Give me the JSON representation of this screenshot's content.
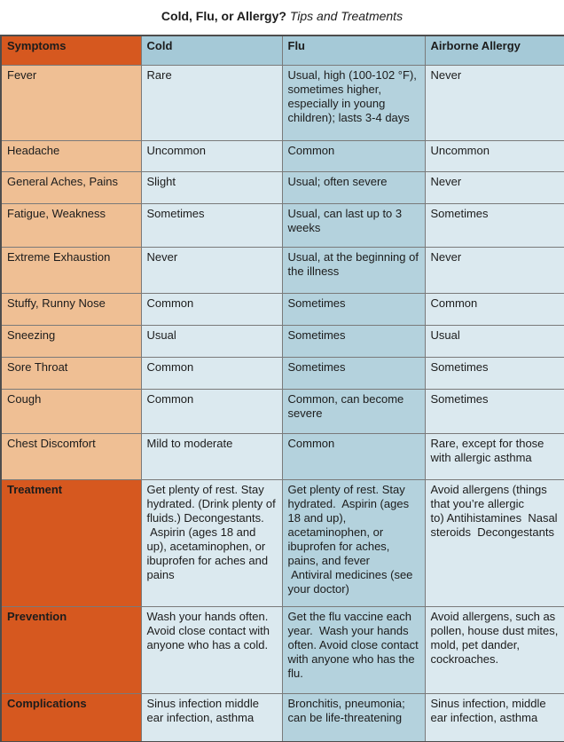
{
  "title": {
    "main": "Cold, Flu, or Allergy?",
    "subtitle": " Tips and Treatments"
  },
  "table": {
    "headers": [
      "Symptoms",
      "Cold",
      "Flu",
      "Airborne Allergy"
    ],
    "rows": [
      {
        "kind": "symptom",
        "label": "Fever",
        "cold": "Rare",
        "flu": "Usual, high (100-102 °F), sometimes higher, especially in young children); lasts 3-4 days",
        "allergy": "Never"
      },
      {
        "kind": "symptom",
        "label": "Headache",
        "cold": "Uncommon",
        "flu": "Common",
        "allergy": "Uncommon"
      },
      {
        "kind": "symptom",
        "label": "General Aches, Pains",
        "cold": "Slight",
        "flu": "Usual; often severe",
        "allergy": "Never"
      },
      {
        "kind": "symptom",
        "label": "Fatigue, Weakness",
        "cold": "Sometimes",
        "flu": "Usual, can last up to 3 weeks",
        "allergy": "Sometimes"
      },
      {
        "kind": "symptom",
        "label": "Extreme Exhaustion",
        "cold": "Never",
        "flu": "Usual, at the beginning of the illness",
        "allergy": "Never"
      },
      {
        "kind": "symptom",
        "label": "Stuffy, Runny Nose",
        "cold": "Common",
        "flu": "Sometimes",
        "allergy": "Common"
      },
      {
        "kind": "symptom",
        "label": "Sneezing",
        "cold": "Usual",
        "flu": "Sometimes",
        "allergy": "Usual"
      },
      {
        "kind": "symptom",
        "label": "Sore Throat",
        "cold": "Common",
        "flu": "Sometimes",
        "allergy": "Sometimes"
      },
      {
        "kind": "symptom",
        "label": "Cough",
        "cold": "Common",
        "flu": "Common, can become severe",
        "allergy": "Sometimes"
      },
      {
        "kind": "symptom",
        "label": "Chest Discomfort",
        "cold": "Mild to moderate",
        "flu": "Common",
        "allergy": "Rare, except for those with allergic asthma"
      },
      {
        "kind": "section",
        "label": "Treatment",
        "cold": "Get plenty of rest. Stay hydrated. (Drink plenty of\nfluids.) Decongestants.\n Aspirin (ages 18 and up), acetaminophen, or ibuprofen for aches and pains",
        "flu": "Get plenty of rest. Stay hydrated.  Aspirin (ages 18 and up), acetaminophen, or ibuprofen for aches, pains, and fever\n Antiviral medicines (see your doctor)",
        "allergy": "Avoid allergens (things that you’re allergic\nto) Antihistamines  Nasal steroids  Decongestants"
      },
      {
        "kind": "section",
        "label": "Prevention",
        "cold": "Wash your hands often. Avoid close contact with anyone who has a cold.",
        "flu": "Get the flu vaccine each year.  Wash your hands often. Avoid close contact with anyone who has the flu.",
        "allergy": "Avoid allergens, such as pollen, house dust mites, mold, pet dander, cockroaches."
      },
      {
        "kind": "section",
        "label": "Complications",
        "cold": "Sinus infection middle ear infection, asthma",
        "flu": "Bronchitis, pneumonia; can be life-threatening",
        "allergy": "Sinus infection, middle ear infection, asthma"
      }
    ]
  },
  "colors": {
    "section_orange": "#D6581F",
    "symptom_orange": "#EFBF94",
    "header_blue": "#A5C9D7",
    "flu_blue": "#B4D2DD",
    "light_blue": "#DBE9EF"
  }
}
